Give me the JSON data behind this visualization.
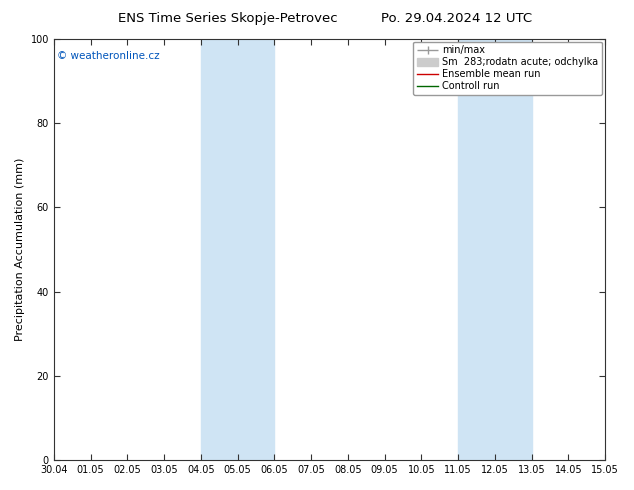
{
  "title_left": "ENS Time Series Skopje-Petrovec",
  "title_right": "Po. 29.04.2024 12 UTC",
  "ylabel": "Precipitation Accumulation (mm)",
  "ylim": [
    0,
    100
  ],
  "yticks": [
    0,
    20,
    40,
    60,
    80,
    100
  ],
  "xtick_labels": [
    "30.04",
    "01.05",
    "02.05",
    "03.05",
    "04.05",
    "05.05",
    "06.05",
    "07.05",
    "08.05",
    "09.05",
    "10.05",
    "11.05",
    "12.05",
    "13.05",
    "14.05",
    "15.05"
  ],
  "shaded_bands": [
    {
      "xstart": 4,
      "xend": 6,
      "color": "#cfe4f4"
    },
    {
      "xstart": 11,
      "xend": 13,
      "color": "#cfe4f4"
    }
  ],
  "legend_entries": [
    {
      "label": "min/max",
      "color": "#999999",
      "lw": 1.0,
      "type": "line"
    },
    {
      "label": "Sm  283;rodatn acute; odchylka",
      "color": "#cccccc",
      "lw": 5,
      "type": "thick"
    },
    {
      "label": "Ensemble mean run",
      "color": "#cc0000",
      "lw": 1.0,
      "type": "line"
    },
    {
      "label": "Controll run",
      "color": "#006600",
      "lw": 1.0,
      "type": "line"
    }
  ],
  "watermark": "© weatheronline.cz",
  "watermark_color": "#0055bb",
  "background_color": "#ffffff",
  "title_fontsize": 9.5,
  "ylabel_fontsize": 8,
  "tick_fontsize": 7,
  "legend_fontsize": 7,
  "watermark_fontsize": 7.5
}
